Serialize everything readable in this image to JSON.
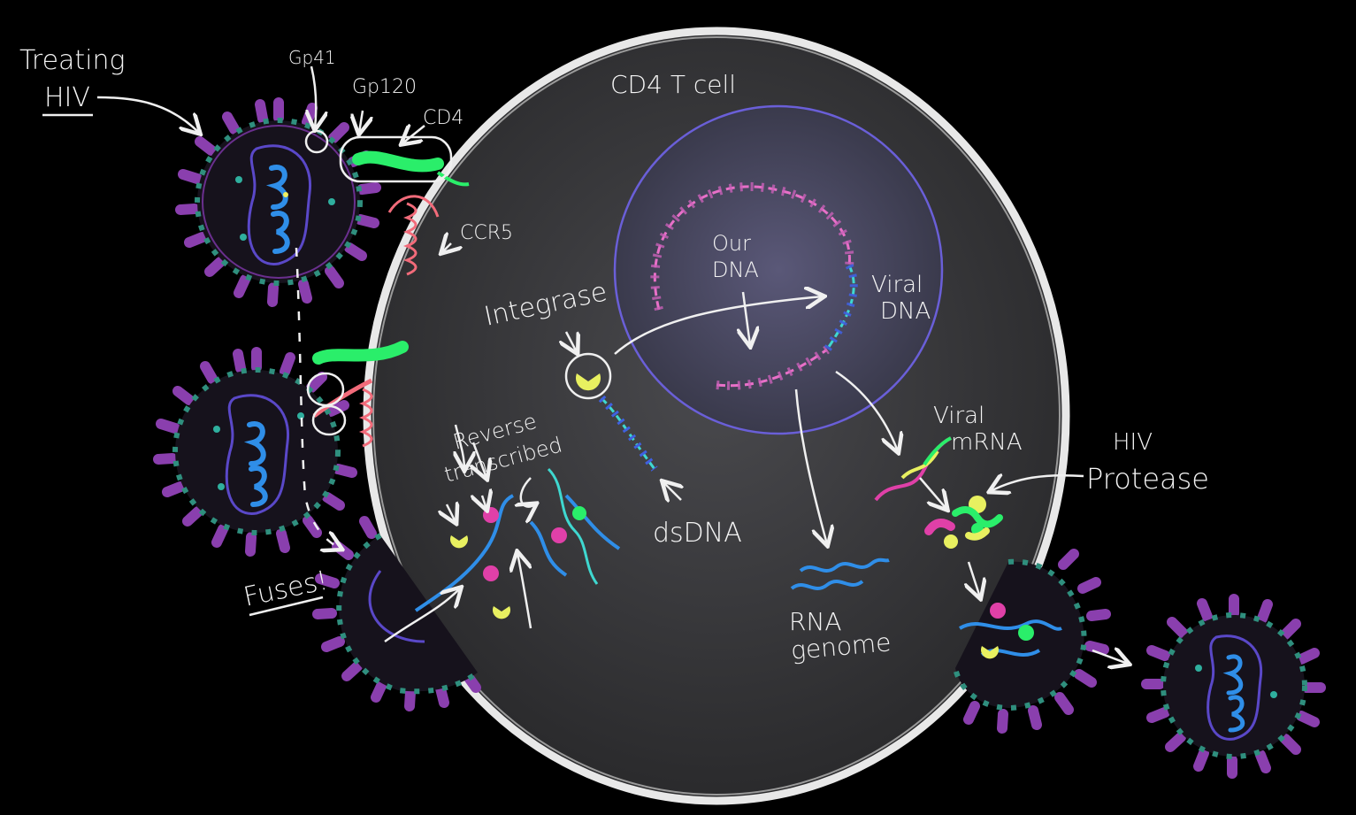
{
  "labels": {
    "title_line1": "Treating",
    "title_line2": "HIV",
    "gp41": "Gp41",
    "gp120": "Gp120",
    "cd4": "CD4",
    "ccr5": "CCR5",
    "cell": "CD4 T cell",
    "our_dna_1": "Our",
    "our_dna_2": "DNA",
    "viral_dna_1": "Viral",
    "viral_dna_2": "DNA",
    "integrase": "Integrase",
    "reverse_1": "Reverse",
    "reverse_2": "transcribed",
    "dsdna": "dsDNA",
    "viral_mrna_1": "Viral",
    "viral_mrna_2": "mRNA",
    "protease_1": "HIV",
    "protease_2": "Protease",
    "rna_1": "RNA",
    "rna_2": "genome",
    "fuses": "Fuses!"
  },
  "colors": {
    "background": "#000000",
    "cell_fill": "#3a3a3c",
    "membrane": "#e8e8e8",
    "virus_spike": "#8a3fae",
    "virus_teal": "#2f8f7e",
    "rna_blue": "#2f8ee8",
    "cd4_green": "#2aee6a",
    "ccr5_pink": "#f26b7a",
    "nuclear_envelope": "#6a5fd8",
    "our_dna_pink": "#e870c8",
    "viral_dna_teal": "#3fd8d0",
    "enzyme_yellow": "#e8f060",
    "enzyme_magenta": "#e040a8"
  }
}
